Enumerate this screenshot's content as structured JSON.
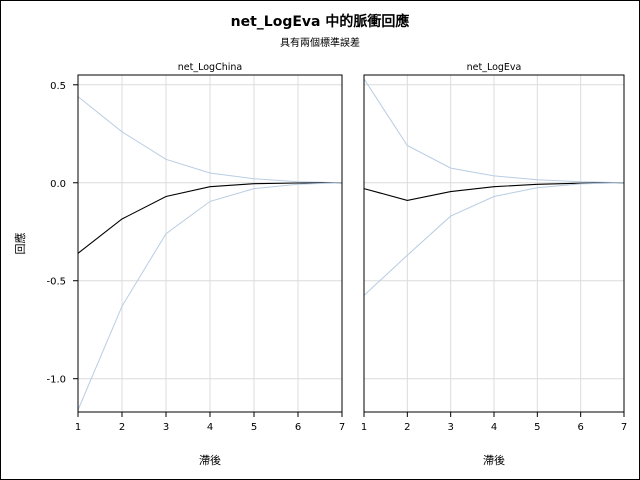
{
  "title": "net_LogEva 中的脈衝回應",
  "subtitle": "具有兩個標準誤差",
  "ylabel": "回應",
  "colors": {
    "response": "#000000",
    "band": "#b8cde3",
    "grid": "#dcdcdc"
  },
  "chart_data": [
    {
      "type": "line",
      "panel_title": "net_LogChina",
      "xlabel": "滯後",
      "ylabel": "回應",
      "x": [
        1,
        2,
        3,
        4,
        5,
        6,
        7
      ],
      "xlim": [
        1,
        7
      ],
      "ylim": [
        -1.17,
        0.55
      ],
      "x_ticks": [
        "1",
        "2",
        "3",
        "4",
        "5",
        "6",
        "7"
      ],
      "y_ticks": [
        0.5,
        0.0,
        -0.5,
        -1.0
      ],
      "y_tick_labels": [
        "0.5",
        "0.0",
        "-0.5",
        "-1.0"
      ],
      "grid": true,
      "series": [
        {
          "role": "upper",
          "values": [
            0.44,
            0.26,
            0.12,
            0.05,
            0.02,
            0.005,
            0.0
          ]
        },
        {
          "role": "response",
          "values": [
            -0.36,
            -0.185,
            -0.07,
            -0.02,
            -0.005,
            -0.001,
            0.0
          ]
        },
        {
          "role": "lower",
          "values": [
            -1.16,
            -0.63,
            -0.26,
            -0.095,
            -0.03,
            -0.008,
            0.0
          ]
        }
      ]
    },
    {
      "type": "line",
      "panel_title": "net_LogEva",
      "xlabel": "滯後",
      "ylabel": "回應",
      "x": [
        1,
        2,
        3,
        4,
        5,
        6,
        7
      ],
      "xlim": [
        1,
        7
      ],
      "ylim": [
        -1.17,
        0.55
      ],
      "x_ticks": [
        "1",
        "2",
        "3",
        "4",
        "5",
        "6",
        "7"
      ],
      "y_ticks": [
        0.5,
        0.0,
        -0.5,
        -1.0
      ],
      "y_tick_labels": [
        "0.5",
        "0.0",
        "-0.5",
        "-1.0"
      ],
      "grid": true,
      "series": [
        {
          "role": "upper",
          "values": [
            0.53,
            0.19,
            0.075,
            0.035,
            0.015,
            0.005,
            0.0
          ]
        },
        {
          "role": "response",
          "values": [
            -0.03,
            -0.09,
            -0.045,
            -0.02,
            -0.008,
            -0.002,
            0.0
          ]
        },
        {
          "role": "lower",
          "values": [
            -0.575,
            -0.37,
            -0.17,
            -0.07,
            -0.025,
            -0.006,
            0.0
          ]
        }
      ]
    }
  ]
}
